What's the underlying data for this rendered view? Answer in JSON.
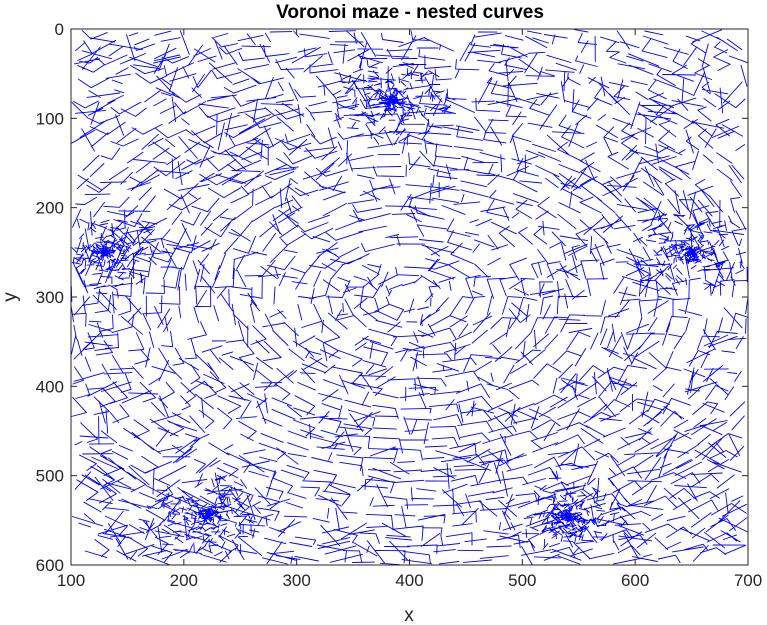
{
  "chart_data": {
    "type": "line",
    "title": "Voronoi maze - nested curves",
    "xlabel": "x",
    "ylabel": "y",
    "xlim": [
      100,
      700
    ],
    "ylim": [
      0,
      600
    ],
    "y_axis_reversed": true,
    "x_ticks": [
      "100",
      "200",
      "300",
      "400",
      "500",
      "600",
      "700"
    ],
    "y_ticks": [
      "0",
      "100",
      "200",
      "300",
      "400",
      "500",
      "600"
    ],
    "grid": false,
    "legend": "none",
    "series": [
      {
        "color": "#0000ff",
        "description": "Voronoi cell edges forming a maze; cells arranged along nested elliptical curves centered near (400, 300), with dense clusters of small cells near (385, 80), (130, 250), (650, 250), (220, 545) and (540, 545)"
      }
    ],
    "colors": {
      "line": "#0000ff",
      "axes": "#262626",
      "background": "#ffffff"
    }
  }
}
